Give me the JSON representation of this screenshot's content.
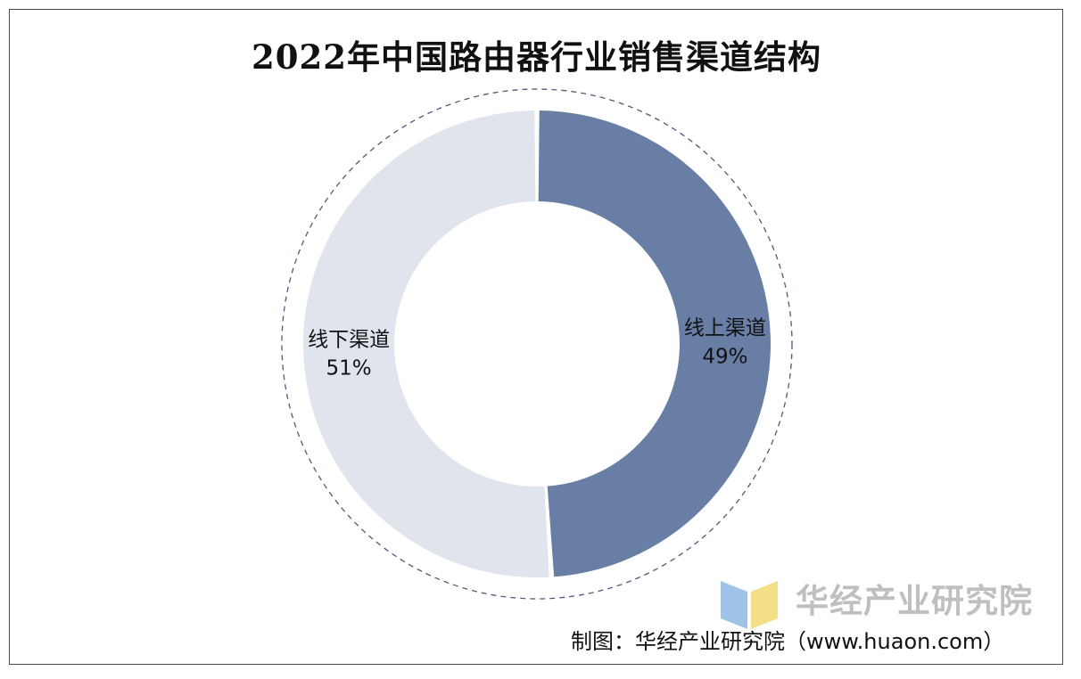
{
  "chart_data": {
    "type": "pie",
    "variant": "donut",
    "title": "2022年中国路由器行业销售渠道结构",
    "slices": [
      {
        "label": "线上渠道",
        "value": 49,
        "value_label": "49%",
        "color": "#687ea5"
      },
      {
        "label": "线下渠道",
        "value": 51,
        "value_label": "51%",
        "color": "#dfe4ed"
      }
    ],
    "outer_ring_style": "dashed",
    "outer_ring_color": "#4d5a78"
  },
  "watermark": {
    "text": "华经产业研究院",
    "logo_colors": [
      "#9fc3e7",
      "#f3df86"
    ]
  },
  "source_note": "制图：华经产业研究院（www.huaon.com）"
}
